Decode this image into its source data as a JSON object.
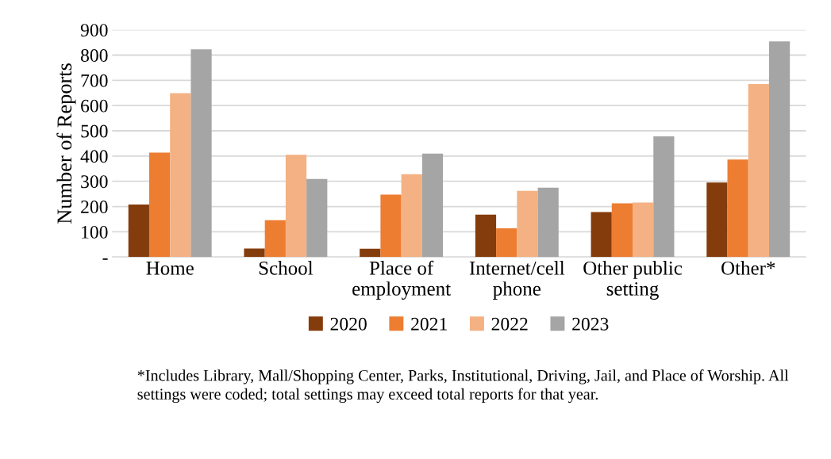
{
  "chart_data": {
    "type": "bar",
    "ylabel": "Number of Reports",
    "categories": [
      "Home",
      "School",
      "Place of\nemployment",
      "Internet/cell\nphone",
      "Other public\nsetting",
      "Other*"
    ],
    "series": [
      {
        "name": "2020",
        "color": "#843c0c",
        "values": [
          208,
          34,
          33,
          168,
          178,
          295
        ]
      },
      {
        "name": "2021",
        "color": "#ed7d31",
        "values": [
          414,
          146,
          247,
          114,
          213,
          386
        ]
      },
      {
        "name": "2022",
        "color": "#f4b183",
        "values": [
          649,
          405,
          328,
          262,
          216,
          685
        ]
      },
      {
        "name": "2023",
        "color": "#a5a5a5",
        "values": [
          823,
          309,
          410,
          275,
          478,
          854
        ]
      }
    ],
    "ylim": [
      0,
      900
    ],
    "yticks": [
      {
        "value": 0,
        "label": "-"
      },
      100,
      200,
      300,
      400,
      500,
      600,
      700,
      800,
      900
    ],
    "grid": "y",
    "legend": "bottom",
    "annotations": [
      "*Includes Library, Mall/Shopping Center, Parks, Institutional, Driving, Jail, and Place of Worship. All settings were coded; total settings may exceed total reports for that year."
    ]
  }
}
